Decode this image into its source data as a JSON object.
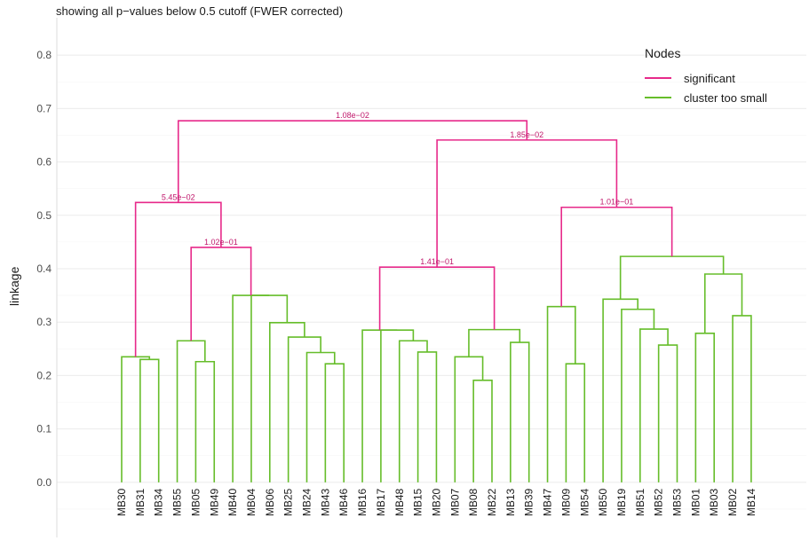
{
  "chart_data": {
    "type": "dendrogram",
    "title": "showing all p−values below 0.5 cutoff (FWER corrected)",
    "ylabel": "linkage",
    "xlabel": "",
    "ylim": [
      -0.09,
      0.87
    ],
    "yticks": [
      0.0,
      0.1,
      0.2,
      0.3,
      0.4,
      0.5,
      0.6,
      0.7,
      0.8
    ],
    "ytick_labels": [
      "0.0",
      "0.1",
      "0.2",
      "0.3",
      "0.4",
      "0.5",
      "0.6",
      "0.7",
      "0.8"
    ],
    "grid": true,
    "legend_position": "top-right",
    "legend": {
      "title": "Nodes",
      "entries": [
        {
          "label": "significant",
          "color": "#e7298a"
        },
        {
          "label": "cluster too small",
          "color": "#66bd2a"
        }
      ]
    },
    "leaves": [
      "MB30",
      "MB31",
      "MB34",
      "MB55",
      "MB05",
      "MB49",
      "MB40",
      "MB04",
      "MB06",
      "MB25",
      "MB24",
      "MB43",
      "MB46",
      "MB16",
      "MB17",
      "MB48",
      "MB15",
      "MB20",
      "MB07",
      "MB08",
      "MB22",
      "MB13",
      "MB39",
      "MB47",
      "MB09",
      "MB54",
      "MB50",
      "MB19",
      "MB51",
      "MB52",
      "MB53",
      "MB01",
      "MB03",
      "MB02",
      "MB14"
    ],
    "merges": [
      {
        "id": "n1",
        "left": "MB31",
        "right": "MB34",
        "height": 0.23,
        "status": "small"
      },
      {
        "id": "n2",
        "left": "MB30",
        "right": "n1",
        "height": 0.235,
        "status": "small"
      },
      {
        "id": "n3",
        "left": "MB05",
        "right": "MB49",
        "height": 0.226,
        "status": "small"
      },
      {
        "id": "n4",
        "left": "MB55",
        "right": "n3",
        "height": 0.265,
        "status": "small"
      },
      {
        "id": "n5",
        "left": "MB43",
        "right": "MB46",
        "height": 0.222,
        "status": "small"
      },
      {
        "id": "n6",
        "left": "MB24",
        "right": "n5",
        "height": 0.243,
        "status": "small"
      },
      {
        "id": "n7",
        "left": "MB25",
        "right": "n6",
        "height": 0.272,
        "status": "small"
      },
      {
        "id": "n8",
        "left": "MB06",
        "right": "n7",
        "height": 0.299,
        "status": "small"
      },
      {
        "id": "n9",
        "left": "MB04",
        "right": "n8",
        "height": 0.35,
        "status": "small"
      },
      {
        "id": "n9b",
        "left": "MB40",
        "right": "n9",
        "height": 0.35,
        "status": "small",
        "hidden": true
      },
      {
        "id": "n10",
        "left": "n4",
        "right": "n9b",
        "height": 0.44,
        "status": "significant",
        "label": "1.02e−01"
      },
      {
        "id": "n11",
        "left": "n2",
        "right": "n10",
        "height": 0.524,
        "status": "significant",
        "label": "5.45e−02"
      },
      {
        "id": "n12",
        "left": "MB15",
        "right": "MB20",
        "height": 0.244,
        "status": "small"
      },
      {
        "id": "n13",
        "left": "MB48",
        "right": "n12",
        "height": 0.265,
        "status": "small"
      },
      {
        "id": "n14",
        "left": "MB17",
        "right": "n13",
        "height": 0.285,
        "status": "small"
      },
      {
        "id": "n15",
        "left": "MB16",
        "right": "n14",
        "height": 0.285,
        "status": "small",
        "hidden": true
      },
      {
        "id": "n16",
        "left": "MB08",
        "right": "MB22",
        "height": 0.191,
        "status": "small"
      },
      {
        "id": "n17",
        "left": "MB07",
        "right": "n16",
        "height": 0.235,
        "status": "small"
      },
      {
        "id": "n18",
        "left": "MB13",
        "right": "MB39",
        "height": 0.262,
        "status": "small"
      },
      {
        "id": "n19",
        "left": "n17",
        "right": "n18",
        "height": 0.286,
        "status": "small"
      },
      {
        "id": "n20",
        "left": "n15",
        "right": "n19",
        "height": 0.403,
        "status": "significant",
        "label": "1.41e−01"
      },
      {
        "id": "n21",
        "left": "MB09",
        "right": "MB54",
        "height": 0.222,
        "status": "small"
      },
      {
        "id": "n22",
        "left": "MB47",
        "right": "n21",
        "height": 0.329,
        "status": "small"
      },
      {
        "id": "n23",
        "left": "MB52",
        "right": "MB53",
        "height": 0.257,
        "status": "small"
      },
      {
        "id": "n24",
        "left": "MB51",
        "right": "n23",
        "height": 0.287,
        "status": "small"
      },
      {
        "id": "n25",
        "left": "MB19",
        "right": "n24",
        "height": 0.324,
        "status": "small"
      },
      {
        "id": "n26",
        "left": "MB50",
        "right": "n25",
        "height": 0.343,
        "status": "small"
      },
      {
        "id": "n27",
        "left": "MB01",
        "right": "MB03",
        "height": 0.279,
        "status": "small"
      },
      {
        "id": "n28",
        "left": "MB02",
        "right": "MB14",
        "height": 0.312,
        "status": "small"
      },
      {
        "id": "n29",
        "left": "n27",
        "right": "n28",
        "height": 0.39,
        "status": "small"
      },
      {
        "id": "n30",
        "left": "n26",
        "right": "n29",
        "height": 0.423,
        "status": "small"
      },
      {
        "id": "n31",
        "left": "n22",
        "right": "n30",
        "height": 0.515,
        "status": "significant",
        "label": "1.01e−01"
      },
      {
        "id": "n32",
        "left": "n20",
        "right": "n31",
        "height": 0.641,
        "status": "significant",
        "label": "1.85e−02"
      },
      {
        "id": "n33",
        "left": "n11",
        "right": "n32",
        "height": 0.677,
        "status": "significant",
        "label": "1.08e−02"
      }
    ]
  }
}
